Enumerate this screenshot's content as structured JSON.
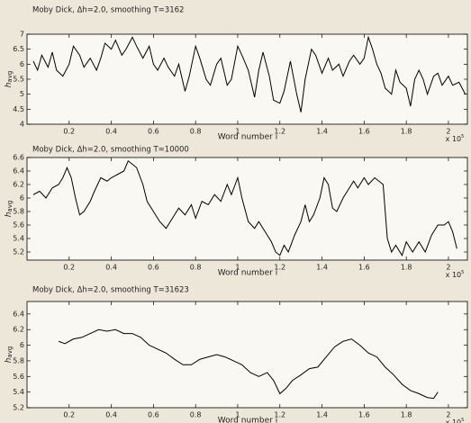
{
  "chart_data": [
    {
      "type": "line",
      "title": "Moby Dick, Δh=2.0, smoothing T=3162",
      "x_label": "Word number i",
      "y_label": {
        "symbol": "h",
        "subscript": "avg"
      },
      "x_scale": {
        "base": "x 10",
        "power": "5"
      },
      "color": "#000000",
      "xlim": [
        0,
        2.09
      ],
      "ylim": [
        4,
        7
      ],
      "xticks": [
        0.2,
        0.4,
        0.6,
        0.8,
        1,
        1.2,
        1.4,
        1.6,
        1.8,
        2
      ],
      "yticks": [
        4,
        4.5,
        5,
        5.5,
        6,
        6.5,
        7
      ],
      "x": [
        0.03,
        0.05,
        0.07,
        0.1,
        0.12,
        0.14,
        0.17,
        0.2,
        0.22,
        0.25,
        0.27,
        0.3,
        0.33,
        0.35,
        0.37,
        0.4,
        0.42,
        0.45,
        0.47,
        0.5,
        0.52,
        0.55,
        0.58,
        0.6,
        0.62,
        0.65,
        0.67,
        0.7,
        0.72,
        0.75,
        0.77,
        0.8,
        0.82,
        0.85,
        0.87,
        0.9,
        0.92,
        0.95,
        0.97,
        1.0,
        1.02,
        1.05,
        1.08,
        1.1,
        1.12,
        1.15,
        1.17,
        1.2,
        1.22,
        1.25,
        1.28,
        1.3,
        1.32,
        1.35,
        1.37,
        1.4,
        1.43,
        1.45,
        1.48,
        1.5,
        1.53,
        1.55,
        1.58,
        1.6,
        1.62,
        1.64,
        1.66,
        1.68,
        1.7,
        1.73,
        1.75,
        1.77,
        1.8,
        1.82,
        1.84,
        1.86,
        1.88,
        1.9,
        1.93,
        1.95,
        1.97,
        2.0,
        2.02,
        2.05,
        2.08
      ],
      "values": [
        6.1,
        5.8,
        6.3,
        5.9,
        6.4,
        5.8,
        5.6,
        6.0,
        6.6,
        6.3,
        5.9,
        6.2,
        5.8,
        6.2,
        6.7,
        6.5,
        6.8,
        6.3,
        6.5,
        6.9,
        6.6,
        6.2,
        6.6,
        6.0,
        5.8,
        6.2,
        5.9,
        5.6,
        6.0,
        5.1,
        5.6,
        6.6,
        6.2,
        5.5,
        5.3,
        6.0,
        6.2,
        5.3,
        5.5,
        6.6,
        6.3,
        5.8,
        4.9,
        5.8,
        6.4,
        5.6,
        4.8,
        4.7,
        5.1,
        6.1,
        5.0,
        4.4,
        5.5,
        6.5,
        6.3,
        5.7,
        6.2,
        5.8,
        6.0,
        5.6,
        6.1,
        6.3,
        6.0,
        6.2,
        6.9,
        6.5,
        6.0,
        5.7,
        5.2,
        5.0,
        5.8,
        5.4,
        5.2,
        4.6,
        5.5,
        5.8,
        5.5,
        5.0,
        5.6,
        5.7,
        5.3,
        5.6,
        5.3,
        5.4,
        5.0
      ]
    },
    {
      "type": "line",
      "title": "Moby Dick, Δh=2.0, smoothing T=10000",
      "x_label": "Word number i",
      "y_label": {
        "symbol": "h",
        "subscript": "avg"
      },
      "x_scale": {
        "base": "x 10",
        "power": "5"
      },
      "color": "#000000",
      "xlim": [
        0,
        2.09
      ],
      "ylim": [
        5.08,
        6.6
      ],
      "xticks": [
        0.2,
        0.4,
        0.6,
        0.8,
        1,
        1.2,
        1.4,
        1.6,
        1.8,
        2
      ],
      "yticks": [
        5.2,
        5.4,
        5.6,
        5.8,
        6,
        6.2,
        6.4,
        6.6
      ],
      "x": [
        0.03,
        0.06,
        0.09,
        0.12,
        0.15,
        0.17,
        0.19,
        0.21,
        0.23,
        0.25,
        0.27,
        0.3,
        0.32,
        0.35,
        0.38,
        0.4,
        0.43,
        0.46,
        0.48,
        0.5,
        0.52,
        0.55,
        0.57,
        0.6,
        0.63,
        0.66,
        0.69,
        0.72,
        0.75,
        0.78,
        0.8,
        0.83,
        0.86,
        0.89,
        0.92,
        0.95,
        0.97,
        1.0,
        1.02,
        1.05,
        1.08,
        1.1,
        1.13,
        1.16,
        1.18,
        1.2,
        1.22,
        1.24,
        1.27,
        1.3,
        1.32,
        1.34,
        1.36,
        1.39,
        1.41,
        1.43,
        1.45,
        1.47,
        1.5,
        1.52,
        1.55,
        1.57,
        1.6,
        1.62,
        1.65,
        1.67,
        1.69,
        1.71,
        1.73,
        1.75,
        1.78,
        1.8,
        1.83,
        1.86,
        1.89,
        1.92,
        1.95,
        1.98,
        2.0,
        2.02,
        2.04
      ],
      "values": [
        6.05,
        6.1,
        6.0,
        6.15,
        6.2,
        6.3,
        6.45,
        6.3,
        6.0,
        5.75,
        5.8,
        5.95,
        6.1,
        6.3,
        6.25,
        6.3,
        6.35,
        6.4,
        6.55,
        6.5,
        6.45,
        6.2,
        5.95,
        5.8,
        5.65,
        5.55,
        5.7,
        5.85,
        5.75,
        5.9,
        5.7,
        5.95,
        5.9,
        6.05,
        5.95,
        6.2,
        6.05,
        6.3,
        6.0,
        5.65,
        5.55,
        5.65,
        5.5,
        5.35,
        5.2,
        5.15,
        5.3,
        5.2,
        5.45,
        5.65,
        5.9,
        5.65,
        5.75,
        6.0,
        6.3,
        6.2,
        5.85,
        5.8,
        6.0,
        6.1,
        6.25,
        6.15,
        6.3,
        6.2,
        6.3,
        6.25,
        6.2,
        5.4,
        5.2,
        5.3,
        5.15,
        5.35,
        5.2,
        5.35,
        5.2,
        5.45,
        5.6,
        5.6,
        5.65,
        5.5,
        5.25
      ]
    },
    {
      "type": "line",
      "title": "Moby Dick, Δh=2.0, smoothing T=31623",
      "x_label": "Word number i",
      "y_label": {
        "symbol": "h",
        "subscript": "avg"
      },
      "x_scale": {
        "base": "x 10",
        "power": "5"
      },
      "color": "#000000",
      "xlim": [
        0,
        2.09
      ],
      "ylim": [
        5.2,
        6.56
      ],
      "xticks": [
        0.2,
        0.4,
        0.6,
        0.8,
        1,
        1.2,
        1.4,
        1.6,
        1.8,
        2
      ],
      "yticks": [
        5.2,
        5.4,
        5.6,
        5.8,
        6,
        6.2,
        6.4
      ],
      "x": [
        0.15,
        0.18,
        0.22,
        0.26,
        0.3,
        0.34,
        0.38,
        0.42,
        0.46,
        0.5,
        0.54,
        0.58,
        0.62,
        0.66,
        0.7,
        0.74,
        0.78,
        0.82,
        0.86,
        0.9,
        0.94,
        0.98,
        1.02,
        1.06,
        1.1,
        1.14,
        1.17,
        1.2,
        1.23,
        1.26,
        1.3,
        1.34,
        1.38,
        1.42,
        1.46,
        1.5,
        1.54,
        1.58,
        1.62,
        1.66,
        1.7,
        1.74,
        1.78,
        1.82,
        1.86,
        1.9,
        1.93,
        1.95
      ],
      "values": [
        6.05,
        6.02,
        6.08,
        6.1,
        6.15,
        6.2,
        6.18,
        6.2,
        6.15,
        6.15,
        6.1,
        6.0,
        5.95,
        5.9,
        5.82,
        5.75,
        5.75,
        5.82,
        5.85,
        5.88,
        5.85,
        5.8,
        5.75,
        5.65,
        5.6,
        5.65,
        5.55,
        5.38,
        5.45,
        5.55,
        5.62,
        5.7,
        5.72,
        5.85,
        5.98,
        6.05,
        6.08,
        6.0,
        5.9,
        5.85,
        5.72,
        5.62,
        5.5,
        5.42,
        5.38,
        5.33,
        5.32,
        5.4
      ]
    }
  ]
}
